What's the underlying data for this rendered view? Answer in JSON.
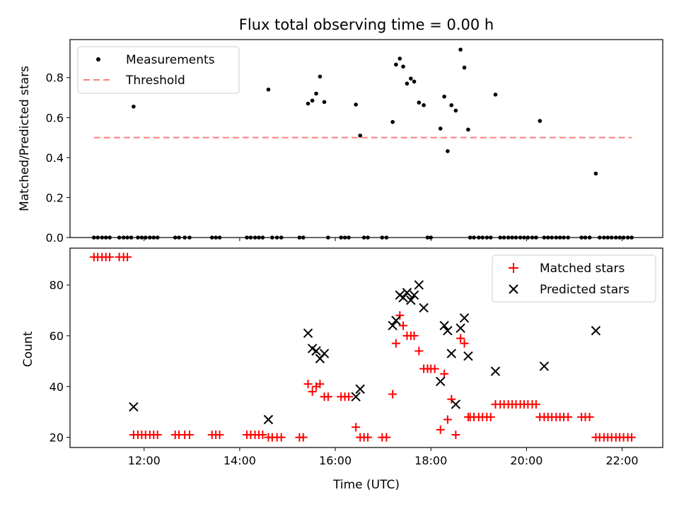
{
  "chart_data": [
    {
      "type": "scatter",
      "title": "Flux total observing time = 0.00 h",
      "xlabel": "",
      "ylabel": "Matched/Predicted stars",
      "xlim": [
        10.45,
        22.85
      ],
      "ylim": [
        0,
        0.99
      ],
      "yticks": [
        0.0,
        0.2,
        0.4,
        0.6,
        0.8
      ],
      "ytick_labels": [
        "0.0",
        "0.2",
        "0.4",
        "0.6",
        "0.8"
      ],
      "legend_position": "top-left",
      "grid": false,
      "series": [
        {
          "name": "Measurements",
          "kind": "points",
          "color": "#000000",
          "x": [
            10.95,
            11.03,
            11.12,
            11.2,
            11.28,
            11.48,
            11.57,
            11.65,
            11.73,
            11.78,
            11.87,
            11.95,
            12.03,
            12.12,
            12.2,
            12.28,
            12.65,
            12.73,
            12.85,
            12.95,
            13.42,
            13.5,
            13.58,
            14.15,
            14.23,
            14.32,
            14.4,
            14.48,
            14.6,
            14.68,
            14.78,
            14.87,
            15.25,
            15.33,
            15.43,
            15.52,
            15.6,
            15.68,
            15.77,
            15.85,
            16.12,
            16.2,
            16.28,
            16.43,
            16.52,
            16.6,
            16.68,
            16.98,
            17.07,
            17.2,
            17.27,
            17.35,
            17.42,
            17.5,
            17.58,
            17.65,
            17.75,
            17.85,
            17.93,
            18.0,
            18.2,
            18.28,
            18.35,
            18.43,
            18.52,
            18.62,
            18.7,
            18.78,
            18.82,
            18.9,
            19.0,
            19.08,
            19.17,
            19.25,
            19.35,
            19.45,
            19.53,
            19.62,
            19.7,
            19.78,
            19.87,
            19.95,
            20.03,
            20.12,
            20.2,
            20.28,
            20.37,
            20.45,
            20.53,
            20.62,
            20.7,
            20.78,
            20.87,
            21.15,
            21.23,
            21.32,
            21.45,
            21.53,
            21.62,
            21.7,
            21.78,
            21.87,
            21.95,
            22.03,
            22.12,
            22.2
          ],
          "y": [
            0,
            0,
            0,
            0,
            0,
            0,
            0,
            0,
            0,
            0.655,
            0,
            0,
            0,
            0,
            0,
            0,
            0,
            0,
            0,
            0,
            0,
            0,
            0,
            0,
            0,
            0,
            0,
            0,
            0.74,
            0,
            0,
            0,
            0,
            0,
            0.67,
            0.685,
            0.72,
            0.805,
            0.678,
            0,
            0,
            0,
            0,
            0.665,
            0.51,
            0,
            0,
            0,
            0,
            0.578,
            0.865,
            0.895,
            0.855,
            0.77,
            0.795,
            0.78,
            0.675,
            0.662,
            0,
            0,
            0.545,
            0.705,
            0.432,
            0.662,
            0.635,
            0.94,
            0.85,
            0.54,
            0,
            0,
            0,
            0,
            0,
            0,
            0.715,
            0,
            0,
            0,
            0,
            0,
            0,
            0,
            0,
            0,
            0,
            0.583,
            0,
            0,
            0,
            0,
            0,
            0,
            0,
            0,
            0,
            0,
            0.32,
            0,
            0,
            0,
            0,
            0,
            0,
            0,
            0,
            0
          ]
        },
        {
          "name": "Threshold",
          "kind": "dashed-line",
          "color": "#ff7f7f",
          "x": [
            10.95,
            22.2
          ],
          "y": [
            0.5,
            0.5
          ]
        }
      ]
    },
    {
      "type": "scatter",
      "title": "",
      "xlabel": "Time (UTC)",
      "ylabel": "Count",
      "xlim": [
        10.45,
        22.85
      ],
      "ylim": [
        16,
        94.5
      ],
      "yticks": [
        20,
        40,
        60,
        80
      ],
      "ytick_labels": [
        "20",
        "40",
        "60",
        "80"
      ],
      "xticks": [
        12,
        14,
        16,
        18,
        20,
        22
      ],
      "xtick_labels": [
        "12:00",
        "14:00",
        "16:00",
        "18:00",
        "20:00",
        "22:00"
      ],
      "legend_position": "top-right",
      "grid": false,
      "series": [
        {
          "name": "Matched stars",
          "kind": "plus",
          "color": "#ff0000",
          "x": [
            10.95,
            11.03,
            11.12,
            11.2,
            11.28,
            11.48,
            11.57,
            11.65,
            11.78,
            11.87,
            11.95,
            12.03,
            12.12,
            12.2,
            12.28,
            12.65,
            12.73,
            12.85,
            12.95,
            13.42,
            13.5,
            13.58,
            14.15,
            14.23,
            14.32,
            14.4,
            14.48,
            14.6,
            14.68,
            14.78,
            14.87,
            15.25,
            15.33,
            15.43,
            15.52,
            15.6,
            15.68,
            15.77,
            15.85,
            16.12,
            16.2,
            16.28,
            16.43,
            16.52,
            16.6,
            16.68,
            16.98,
            17.07,
            17.2,
            17.27,
            17.35,
            17.42,
            17.5,
            17.58,
            17.65,
            17.75,
            17.85,
            17.93,
            18.0,
            18.08,
            18.2,
            18.28,
            18.35,
            18.43,
            18.52,
            18.62,
            18.7,
            18.78,
            18.82,
            18.9,
            19.0,
            19.08,
            19.17,
            19.25,
            19.35,
            19.45,
            19.53,
            19.62,
            19.7,
            19.78,
            19.87,
            19.95,
            20.03,
            20.12,
            20.2,
            20.28,
            20.37,
            20.45,
            20.53,
            20.62,
            20.7,
            20.78,
            20.87,
            21.15,
            21.23,
            21.32,
            21.45,
            21.53,
            21.62,
            21.7,
            21.78,
            21.87,
            21.95,
            22.03,
            22.12,
            22.2
          ],
          "y": [
            91,
            91,
            91,
            91,
            91,
            91,
            91,
            91,
            21,
            21,
            21,
            21,
            21,
            21,
            21,
            21,
            21,
            21,
            21,
            21,
            21,
            21,
            21,
            21,
            21,
            21,
            21,
            20,
            20,
            20,
            20,
            20,
            20,
            41,
            38,
            40,
            41,
            36,
            36,
            36,
            36,
            36,
            24,
            20,
            20,
            20,
            20,
            20,
            37,
            57,
            68,
            64,
            60,
            60,
            60,
            54,
            47,
            47,
            47,
            47,
            23,
            45,
            27,
            35,
            21,
            59,
            57,
            28,
            28,
            28,
            28,
            28,
            28,
            28,
            33,
            33,
            33,
            33,
            33,
            33,
            33,
            33,
            33,
            33,
            33,
            28,
            28,
            28,
            28,
            28,
            28,
            28,
            28,
            28,
            28,
            28,
            20,
            20,
            20,
            20,
            20,
            20,
            20,
            20,
            20,
            20
          ]
        },
        {
          "name": "Predicted stars",
          "kind": "cross",
          "color": "#000000",
          "x": [
            11.78,
            14.6,
            15.43,
            15.52,
            15.6,
            15.68,
            15.77,
            16.43,
            16.52,
            17.2,
            17.27,
            17.35,
            17.42,
            17.5,
            17.58,
            17.65,
            17.75,
            17.85,
            18.2,
            18.28,
            18.35,
            18.43,
            18.52,
            18.62,
            18.7,
            18.78,
            19.35,
            20.37,
            21.45
          ],
          "y": [
            32,
            27,
            61,
            55,
            54,
            51,
            53,
            36,
            39,
            64,
            66,
            76,
            75,
            77,
            74,
            76,
            80,
            71,
            42,
            64,
            62,
            53,
            33,
            63,
            67,
            52,
            46,
            48,
            62
          ]
        }
      ]
    }
  ]
}
